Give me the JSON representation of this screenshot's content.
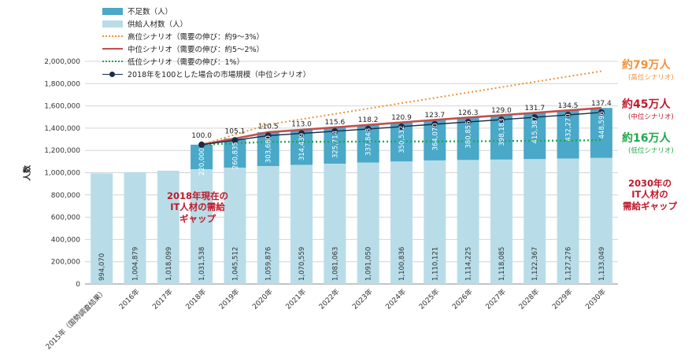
{
  "legend": [
    {
      "label": "不足数（人）",
      "kind": "box",
      "color": "#4aa8c8"
    },
    {
      "label": "供給人材数（人）",
      "kind": "box",
      "color": "#b8dde8"
    },
    {
      "label": "高位シナリオ（需要の伸び：約9～3%）",
      "kind": "dotted",
      "color": "#f0913a"
    },
    {
      "label": "中位シナリオ（需要の伸び：約5～2%）",
      "kind": "solid",
      "color": "#c0504d"
    },
    {
      "label": "低位シナリオ（需要の伸び：1%）",
      "kind": "dotted",
      "color": "#1fa84a"
    },
    {
      "label": "2018年を100とした場合の市場規模（中位シナリオ）",
      "kind": "marker",
      "color": "#1b2b48"
    }
  ],
  "annotations": {
    "gap2018": [
      "2018年現在の",
      "IT人材の需給",
      "ギャップ"
    ],
    "gap2030": [
      "2030年の",
      "IT人材の",
      "需給ギャップ"
    ],
    "high": {
      "value": "約79万人",
      "note": "(高位シナリオ)"
    },
    "mid": {
      "value": "約45万人",
      "note": "(中位シナリオ)"
    },
    "low": {
      "value": "約16万人",
      "note": "(低位シナリオ)"
    }
  },
  "chart_data": {
    "type": "bar",
    "ylabel": "人数",
    "ylim": [
      0,
      2000000
    ],
    "yticks": [
      "0",
      "200,000",
      "400,000",
      "600,000",
      "800,000",
      "1,000,000",
      "1,200,000",
      "1,400,000",
      "1,600,000",
      "1,800,000",
      "2,000,000"
    ],
    "categories": [
      "2015年（国勢調査結果）",
      "2016年",
      "2017年",
      "2018年",
      "2019年",
      "2020年",
      "2021年",
      "2022年",
      "2023年",
      "2024年",
      "2025年",
      "2026年",
      "2027年",
      "2028年",
      "2029年",
      "2030年"
    ],
    "supply": [
      994070,
      1004879,
      1018099,
      1031538,
      1045512,
      1059876,
      1070559,
      1081063,
      1091050,
      1100836,
      1110121,
      1114225,
      1118085,
      1122367,
      1127276,
      1133049
    ],
    "supply_labels": [
      "994,070",
      "1,004,879",
      "1,018,099",
      "1,031,538",
      "1,045,512",
      "1,059,876",
      "1,070,559",
      "1,081,063",
      "1,091,050",
      "1,100,836",
      "1,110,121",
      "1,114,225",
      "1,118,085",
      "1,122,367",
      "1,127,276",
      "1,133,049"
    ],
    "shortage": [
      null,
      null,
      null,
      220000,
      260835,
      303680,
      314439,
      325714,
      337848,
      350532,
      364070,
      380856,
      398183,
      415387,
      432270,
      448596
    ],
    "shortage_labels": [
      "",
      "",
      "",
      "220,000",
      "260,835",
      "303,680",
      "314,439",
      "325,714",
      "337,848",
      "350,532",
      "364,070",
      "380,856",
      "398,183",
      "415,387",
      "432,270",
      "448,596"
    ],
    "market_index": [
      null,
      null,
      null,
      100.0,
      105.1,
      110.5,
      113.0,
      115.6,
      118.2,
      120.9,
      123.7,
      126.3,
      129.0,
      131.7,
      134.5,
      137.4
    ],
    "market_index_labels": [
      "",
      "",
      "",
      "100.0",
      "105.1",
      "110.5",
      "113.0",
      "115.6",
      "118.2",
      "120.9",
      "123.7",
      "126.3",
      "129.0",
      "131.7",
      "134.5",
      "137.4"
    ],
    "high_scenario": [
      null,
      null,
      null,
      1251538,
      1342000,
      1432000,
      1480000,
      1528000,
      1576000,
      1624000,
      1672000,
      1720000,
      1768000,
      1816000,
      1864000,
      1912000
    ],
    "mid_scenario": [
      null,
      null,
      null,
      1251538,
      1306347,
      1363556,
      1384998,
      1406777,
      1428898,
      1451368,
      1474191,
      1495081,
      1516268,
      1537754,
      1559546,
      1581645
    ],
    "low_scenario": [
      null,
      null,
      null,
      1251538,
      1264000,
      1276700,
      1277000,
      1278000,
      1279000,
      1280000,
      1281000,
      1282000,
      1284000,
      1286000,
      1288000,
      1293000
    ]
  }
}
